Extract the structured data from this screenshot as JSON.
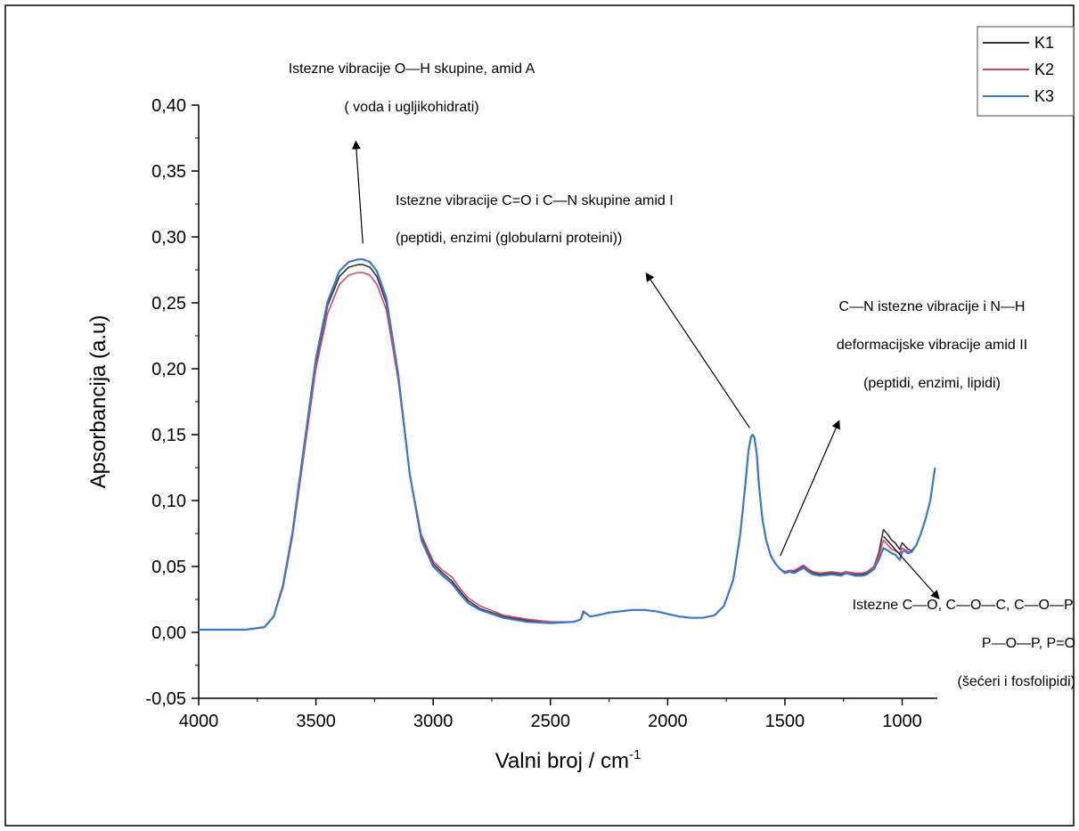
{
  "chart_data": {
    "type": "line",
    "xlabel": "Valni broj / cm",
    "xlabel_sup": "-1",
    "ylabel": "Apsorbancija (a.u)",
    "xlim": [
      4000,
      850
    ],
    "ylim": [
      -0.05,
      0.4
    ],
    "x_ticks": [
      4000,
      3500,
      3000,
      2500,
      2000,
      1500,
      1000
    ],
    "x_tick_labels": [
      "4000",
      "3500",
      "3000",
      "2500",
      "2000",
      "1500",
      "1000"
    ],
    "y_ticks": [
      -0.05,
      0.0,
      0.05,
      0.1,
      0.15,
      0.2,
      0.25,
      0.3,
      0.35,
      0.4
    ],
    "y_tick_labels": [
      "-0,05",
      "0,00",
      "0,05",
      "0,10",
      "0,15",
      "0,20",
      "0,25",
      "0,30",
      "0,35",
      "0,40"
    ],
    "grid": false,
    "legend_position": "top-right",
    "series": [
      {
        "name": "K1",
        "color": "#333333",
        "x": [
          4000,
          3800,
          3720,
          3680,
          3640,
          3600,
          3550,
          3500,
          3450,
          3400,
          3360,
          3320,
          3300,
          3270,
          3240,
          3200,
          3150,
          3100,
          3050,
          3000,
          2960,
          2920,
          2880,
          2850,
          2800,
          2700,
          2600,
          2500,
          2400,
          2370,
          2360,
          2345,
          2330,
          2300,
          2250,
          2200,
          2150,
          2100,
          2050,
          2000,
          1950,
          1900,
          1850,
          1800,
          1760,
          1720,
          1690,
          1670,
          1655,
          1645,
          1638,
          1630,
          1620,
          1610,
          1595,
          1580,
          1560,
          1540,
          1520,
          1500,
          1480,
          1460,
          1440,
          1420,
          1400,
          1380,
          1350,
          1300,
          1260,
          1240,
          1200,
          1170,
          1150,
          1120,
          1100,
          1080,
          1070,
          1060,
          1045,
          1030,
          1010,
          1000,
          990,
          975,
          960,
          940,
          920,
          900,
          880,
          860
        ],
        "y": [
          0.002,
          0.002,
          0.004,
          0.012,
          0.035,
          0.075,
          0.14,
          0.205,
          0.248,
          0.27,
          0.277,
          0.279,
          0.279,
          0.277,
          0.27,
          0.25,
          0.195,
          0.12,
          0.072,
          0.052,
          0.045,
          0.039,
          0.03,
          0.024,
          0.018,
          0.012,
          0.009,
          0.007,
          0.008,
          0.01,
          0.015,
          0.014,
          0.012,
          0.013,
          0.015,
          0.016,
          0.017,
          0.017,
          0.016,
          0.014,
          0.012,
          0.011,
          0.011,
          0.013,
          0.02,
          0.04,
          0.075,
          0.11,
          0.138,
          0.148,
          0.15,
          0.148,
          0.135,
          0.11,
          0.085,
          0.07,
          0.058,
          0.052,
          0.048,
          0.046,
          0.047,
          0.046,
          0.048,
          0.05,
          0.047,
          0.045,
          0.044,
          0.045,
          0.044,
          0.046,
          0.044,
          0.044,
          0.045,
          0.05,
          0.06,
          0.078,
          0.076,
          0.074,
          0.07,
          0.068,
          0.063,
          0.068,
          0.066,
          0.063,
          0.062,
          0.066,
          0.075,
          0.086,
          0.1,
          0.125
        ]
      },
      {
        "name": "K2",
        "color": "#d9465e",
        "x": [
          4000,
          3800,
          3720,
          3680,
          3640,
          3600,
          3550,
          3500,
          3450,
          3400,
          3360,
          3320,
          3300,
          3270,
          3240,
          3200,
          3150,
          3100,
          3050,
          3000,
          2960,
          2920,
          2880,
          2850,
          2800,
          2700,
          2600,
          2500,
          2400,
          2370,
          2360,
          2345,
          2330,
          2300,
          2250,
          2200,
          2150,
          2100,
          2050,
          2000,
          1950,
          1900,
          1850,
          1800,
          1760,
          1720,
          1690,
          1670,
          1655,
          1645,
          1638,
          1630,
          1620,
          1610,
          1595,
          1580,
          1560,
          1540,
          1520,
          1500,
          1480,
          1460,
          1440,
          1420,
          1400,
          1380,
          1350,
          1300,
          1260,
          1240,
          1200,
          1170,
          1150,
          1120,
          1100,
          1080,
          1070,
          1060,
          1045,
          1030,
          1010,
          1000,
          990,
          975,
          960,
          940,
          920,
          900,
          880,
          860
        ],
        "y": [
          0.002,
          0.002,
          0.004,
          0.012,
          0.034,
          0.073,
          0.136,
          0.2,
          0.242,
          0.264,
          0.271,
          0.273,
          0.273,
          0.271,
          0.264,
          0.245,
          0.192,
          0.12,
          0.074,
          0.054,
          0.047,
          0.042,
          0.032,
          0.026,
          0.02,
          0.013,
          0.01,
          0.008,
          0.008,
          0.01,
          0.015,
          0.014,
          0.012,
          0.013,
          0.015,
          0.016,
          0.017,
          0.017,
          0.016,
          0.014,
          0.012,
          0.011,
          0.011,
          0.013,
          0.02,
          0.04,
          0.075,
          0.11,
          0.138,
          0.148,
          0.15,
          0.148,
          0.135,
          0.11,
          0.085,
          0.07,
          0.058,
          0.052,
          0.048,
          0.046,
          0.047,
          0.047,
          0.049,
          0.051,
          0.048,
          0.046,
          0.045,
          0.046,
          0.045,
          0.046,
          0.045,
          0.045,
          0.046,
          0.05,
          0.058,
          0.07,
          0.068,
          0.066,
          0.063,
          0.062,
          0.06,
          0.064,
          0.063,
          0.061,
          0.061,
          0.066,
          0.075,
          0.086,
          0.1,
          0.125
        ]
      },
      {
        "name": "K3",
        "color": "#3b78c8",
        "x": [
          4000,
          3800,
          3720,
          3680,
          3640,
          3600,
          3550,
          3500,
          3450,
          3400,
          3360,
          3320,
          3300,
          3270,
          3240,
          3200,
          3150,
          3100,
          3050,
          3000,
          2960,
          2920,
          2880,
          2850,
          2800,
          2700,
          2600,
          2500,
          2400,
          2370,
          2360,
          2345,
          2330,
          2300,
          2250,
          2200,
          2150,
          2100,
          2050,
          2000,
          1950,
          1900,
          1850,
          1800,
          1760,
          1720,
          1690,
          1670,
          1655,
          1645,
          1638,
          1630,
          1620,
          1610,
          1595,
          1580,
          1560,
          1540,
          1520,
          1500,
          1480,
          1460,
          1440,
          1420,
          1400,
          1380,
          1350,
          1300,
          1260,
          1240,
          1200,
          1170,
          1150,
          1120,
          1100,
          1080,
          1070,
          1060,
          1045,
          1030,
          1010,
          1000,
          990,
          975,
          960,
          940,
          920,
          900,
          880,
          860
        ],
        "y": [
          0.002,
          0.002,
          0.004,
          0.012,
          0.036,
          0.076,
          0.142,
          0.208,
          0.251,
          0.274,
          0.281,
          0.283,
          0.283,
          0.281,
          0.274,
          0.254,
          0.197,
          0.12,
          0.07,
          0.05,
          0.043,
          0.037,
          0.028,
          0.022,
          0.017,
          0.011,
          0.008,
          0.007,
          0.008,
          0.01,
          0.016,
          0.014,
          0.012,
          0.013,
          0.015,
          0.016,
          0.017,
          0.017,
          0.016,
          0.014,
          0.012,
          0.011,
          0.011,
          0.013,
          0.02,
          0.04,
          0.075,
          0.11,
          0.138,
          0.148,
          0.15,
          0.148,
          0.135,
          0.11,
          0.085,
          0.07,
          0.058,
          0.052,
          0.048,
          0.045,
          0.046,
          0.045,
          0.047,
          0.049,
          0.046,
          0.044,
          0.043,
          0.044,
          0.043,
          0.045,
          0.043,
          0.043,
          0.044,
          0.048,
          0.055,
          0.064,
          0.063,
          0.062,
          0.06,
          0.059,
          0.055,
          0.061,
          0.062,
          0.06,
          0.061,
          0.066,
          0.075,
          0.086,
          0.1,
          0.125
        ]
      }
    ],
    "annotations": [
      {
        "id": "amid-a",
        "lines": [
          "Istezne vibracije O—H skupine, amid A",
          "( voda i ugljikohidrati)"
        ],
        "anchor": "middle",
        "arrow_from": [
          3300,
          0.295
        ],
        "arrow_to": [
          3330,
          0.372
        ]
      },
      {
        "id": "amid-i",
        "lines": [
          "Istezne vibracije C=O i C—N skupine amid I",
          "(peptidi, enzimi (globularni proteini))"
        ],
        "anchor": "start",
        "arrow_from": [
          1650,
          0.155
        ],
        "arrow_to": [
          2090,
          0.272
        ]
      },
      {
        "id": "amid-ii",
        "lines": [
          "C—N istezne vibracije i N—H",
          "deformacijske vibracije amid II",
          "(peptidi, enzimi, lipidi)"
        ],
        "anchor": "middle",
        "arrow_from": [
          1520,
          0.058
        ],
        "arrow_to": [
          1270,
          0.16
        ]
      },
      {
        "id": "sugars-phospholipids",
        "lines": [
          "Istezne C—O, C—O—C, C—O—P,",
          "P—O—P, P=O",
          "(šećeri i fosfolipidi)"
        ],
        "anchor": "end",
        "arrow_from": [
          1080,
          0.073
        ],
        "arrow_to": [
          845,
          0.026
        ]
      }
    ]
  }
}
